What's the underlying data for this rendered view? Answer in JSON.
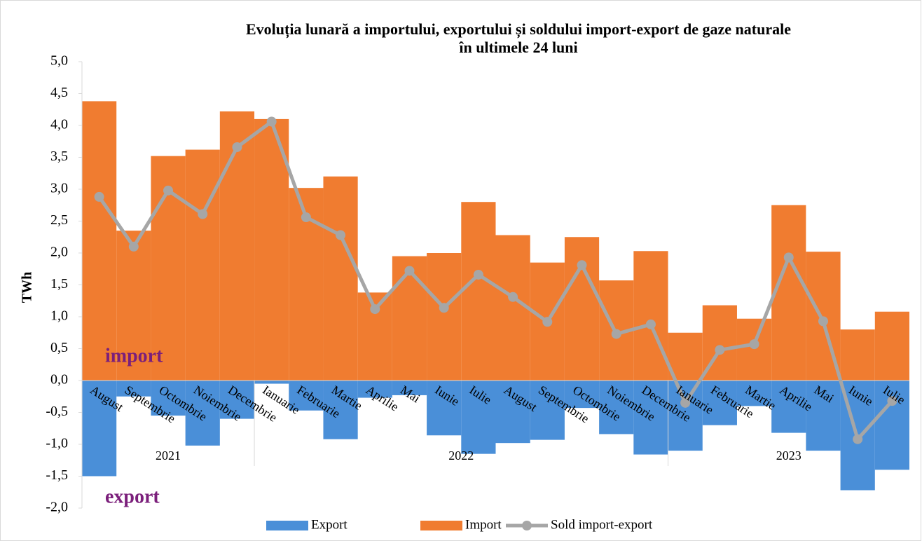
{
  "chart_data": {
    "type": "bar_line",
    "title": "Evoluția lunară a importului, exportului și soldului import-export de gaze naturale",
    "subtitle": "în ultimele 24 luni",
    "y_label": "TWh",
    "annotations": [
      "import",
      "export"
    ],
    "categories": [
      "August",
      "Septembrie",
      "Octombrie",
      "Noiembrie",
      "Decembrie",
      "Ianuarie",
      "Februarie",
      "Martie",
      "Aprilie",
      "Mai",
      "Iunie",
      "Iulie",
      "August",
      "Septembrie",
      "Octombrie",
      "Noiembrie",
      "Decembrie",
      "Ianuarie",
      "Februarie",
      "Martie",
      "Aprilie",
      "Mai",
      "Iunie",
      "Iulie"
    ],
    "years": [
      {
        "label": "2021",
        "span": 5
      },
      {
        "label": "2022",
        "span": 12
      },
      {
        "label": "2023",
        "span": 7
      }
    ],
    "series": [
      {
        "name": "Export",
        "color": "#4a8fd8",
        "kind": "bar",
        "values": [
          -1.5,
          -0.25,
          -0.55,
          -1.02,
          -0.6,
          -0.05,
          -0.47,
          -0.92,
          -0.27,
          -0.23,
          -0.86,
          -1.15,
          -0.98,
          -0.93,
          -0.43,
          -0.84,
          -1.16,
          -1.1,
          -0.7,
          -0.4,
          -0.82,
          -1.1,
          -1.72,
          -1.4
        ]
      },
      {
        "name": "Import",
        "color": "#f07c30",
        "kind": "bar",
        "values": [
          4.38,
          2.35,
          3.52,
          3.62,
          4.22,
          4.1,
          3.02,
          3.2,
          1.38,
          1.95,
          2.0,
          2.8,
          2.28,
          1.85,
          2.25,
          1.57,
          2.03,
          0.75,
          1.18,
          0.97,
          2.75,
          2.02,
          0.8,
          1.08
        ]
      },
      {
        "name": "Sold import-export",
        "color": "#a6a6a6",
        "kind": "line",
        "values": [
          2.88,
          2.1,
          2.98,
          2.61,
          3.66,
          4.06,
          2.56,
          2.28,
          1.12,
          1.72,
          1.14,
          1.66,
          1.31,
          0.92,
          1.81,
          0.73,
          0.88,
          -0.35,
          0.48,
          0.57,
          1.93,
          0.93,
          -0.92,
          -0.32
        ]
      }
    ],
    "ylim": [
      -2,
      5
    ],
    "yticks": [
      {
        "value": 5,
        "label": "5,0"
      },
      {
        "value": 4.5,
        "label": "4,5"
      },
      {
        "value": 4,
        "label": "4,0"
      },
      {
        "value": 3.5,
        "label": "3,5"
      },
      {
        "value": 3,
        "label": "3,0"
      },
      {
        "value": 2.5,
        "label": "2,5"
      },
      {
        "value": 2,
        "label": "2,0"
      },
      {
        "value": 1.5,
        "label": "1,5"
      },
      {
        "value": 1,
        "label": "1,0"
      },
      {
        "value": 0.5,
        "label": "0,5"
      },
      {
        "value": 0,
        "label": "0,0"
      },
      {
        "value": -0.5,
        "label": "-0,5"
      },
      {
        "value": -1,
        "label": "-1,0"
      },
      {
        "value": -1.5,
        "label": "-1,5"
      },
      {
        "value": -2,
        "label": "-2,0"
      }
    ],
    "annotation_color": "#7b1f7b"
  }
}
